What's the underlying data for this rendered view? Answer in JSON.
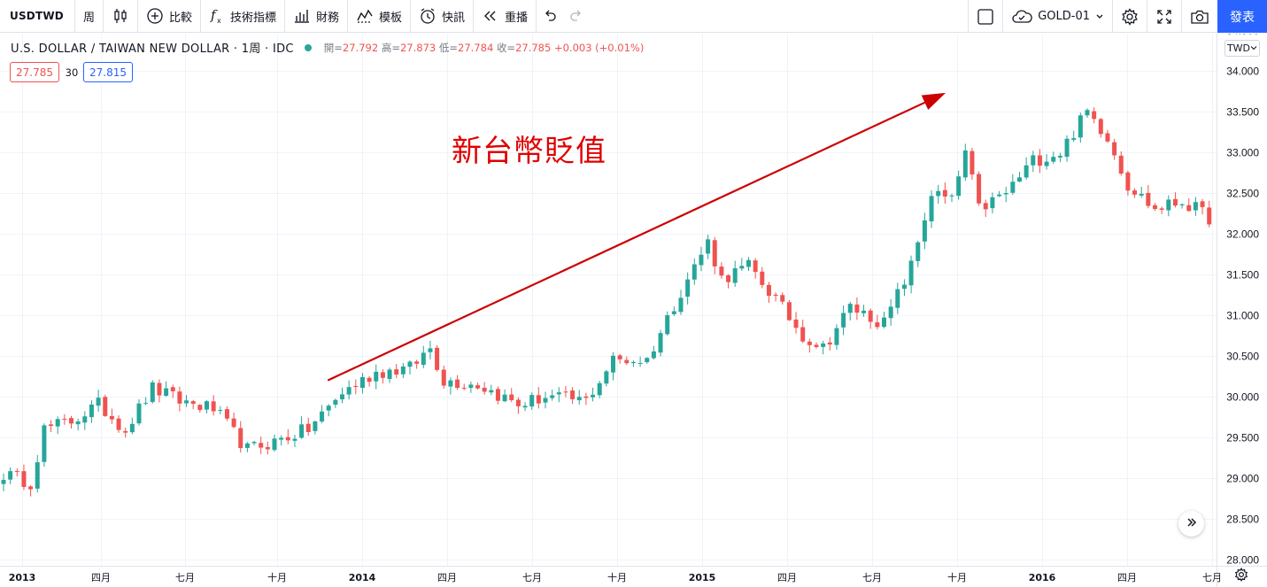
{
  "toolbar": {
    "symbol": "USDTWD",
    "interval": "周",
    "compare": "比較",
    "indicators": "技術指標",
    "financials": "財務",
    "templates": "模板",
    "alert": "快訊",
    "replay": "重播",
    "layout_name": "GOLD-01",
    "publish": "發表"
  },
  "legend": {
    "title": "U.S. DOLLAR / TAIWAN NEW DOLLAR · 1周 · IDC",
    "open_label": "開=",
    "open": "27.792",
    "high_label": "高=",
    "high": "27.873",
    "low_label": "低=",
    "low": "27.784",
    "close_label": "收=",
    "close": "27.785",
    "change": "+0.003 (+0.01%)",
    "bid": "27.785",
    "spread": "30",
    "ask": "27.815"
  },
  "currency": "TWD",
  "annotation": "新台幣貶值",
  "colors": {
    "up": "#26a69a",
    "down": "#ef5350",
    "accent": "#2962ff",
    "annotation": "#e00000"
  },
  "chart_data": {
    "type": "candlestick",
    "ylim": [
      28.0,
      34.5
    ],
    "y_ticks": [
      "34.500",
      "34.000",
      "33.500",
      "33.000",
      "32.500",
      "32.000",
      "31.500",
      "31.000",
      "30.500",
      "30.000",
      "29.500",
      "29.000",
      "28.500",
      "28.000"
    ],
    "x_ticks": [
      {
        "label": "2013",
        "bold": true
      },
      {
        "label": "四月",
        "bold": false
      },
      {
        "label": "七月",
        "bold": false
      },
      {
        "label": "十月",
        "bold": false
      },
      {
        "label": "2014",
        "bold": true
      },
      {
        "label": "四月",
        "bold": false
      },
      {
        "label": "七月",
        "bold": false
      },
      {
        "label": "十月",
        "bold": false
      },
      {
        "label": "2015",
        "bold": true
      },
      {
        "label": "四月",
        "bold": false
      },
      {
        "label": "七月",
        "bold": false
      },
      {
        "label": "十月",
        "bold": false
      },
      {
        "label": "2016",
        "bold": true
      },
      {
        "label": "四月",
        "bold": false
      },
      {
        "label": "七月",
        "bold": false
      }
    ],
    "anchors": [
      [
        0,
        29.05
      ],
      [
        4,
        28.95
      ],
      [
        6,
        29.6
      ],
      [
        10,
        29.7
      ],
      [
        14,
        29.9
      ],
      [
        18,
        29.6
      ],
      [
        22,
        30.1
      ],
      [
        26,
        29.95
      ],
      [
        31,
        29.85
      ],
      [
        36,
        29.35
      ],
      [
        40,
        29.45
      ],
      [
        45,
        29.6
      ],
      [
        50,
        30.05
      ],
      [
        55,
        30.3
      ],
      [
        60,
        30.35
      ],
      [
        63,
        30.6
      ],
      [
        65,
        30.2
      ],
      [
        70,
        30.15
      ],
      [
        76,
        29.9
      ],
      [
        80,
        30.0
      ],
      [
        86,
        29.95
      ],
      [
        90,
        30.45
      ],
      [
        95,
        30.45
      ],
      [
        100,
        31.3
      ],
      [
        104,
        31.9
      ],
      [
        106,
        31.45
      ],
      [
        110,
        31.6
      ],
      [
        113,
        31.3
      ],
      [
        118,
        30.75
      ],
      [
        121,
        30.6
      ],
      [
        125,
        31.1
      ],
      [
        130,
        30.9
      ],
      [
        134,
        31.6
      ],
      [
        137,
        32.5
      ],
      [
        140,
        32.4
      ],
      [
        142,
        33.0
      ],
      [
        144,
        32.3
      ],
      [
        148,
        32.5
      ],
      [
        152,
        32.9
      ],
      [
        156,
        33.0
      ],
      [
        160,
        33.5
      ],
      [
        163,
        33.2
      ],
      [
        166,
        32.6
      ],
      [
        170,
        32.3
      ],
      [
        174,
        32.4
      ],
      [
        178,
        32.2
      ]
    ],
    "trend_arrow": {
      "from": [
        48,
        30.2
      ],
      "to": [
        137,
        33.73
      ]
    }
  }
}
